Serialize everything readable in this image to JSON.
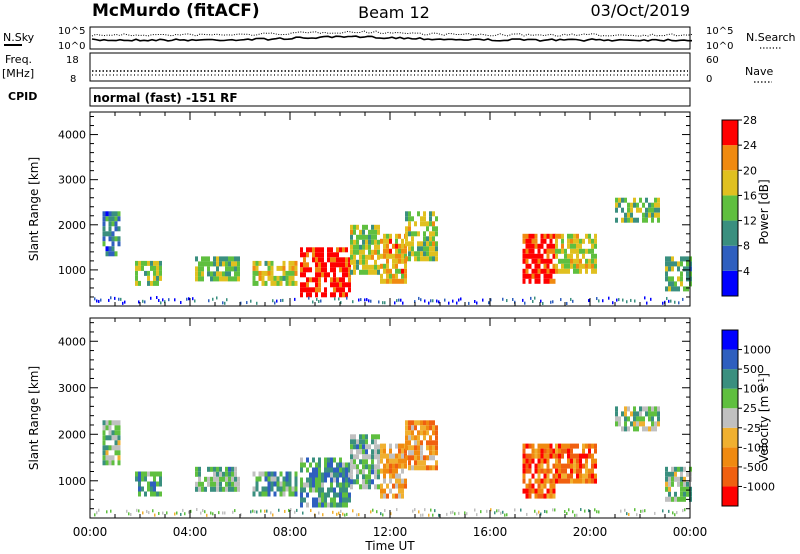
{
  "header": {
    "station": "McMurdo (fitACF)",
    "beam": "Beam 12",
    "date": "03/Oct/2019"
  },
  "top_panels": {
    "nsky_label": "N.Sky",
    "nsearch_label": "N.Search",
    "freq_label": "Freq.",
    "freq_unit": "[MHz]",
    "nave_label": "Nave",
    "cpid_label": "CPID",
    "cpid_value": "normal (fast) -151 RF",
    "noise_ticks": [
      "10^5",
      "10^0"
    ],
    "freq_ticks": [
      "18",
      "8"
    ],
    "nave_ticks": [
      "60",
      "0"
    ]
  },
  "chart_data": [
    {
      "type": "heatmap",
      "name": "power",
      "ylabel": "Slant Range [km]",
      "xlabel": "",
      "x_ticks": [
        "00:00",
        "04:00",
        "08:00",
        "12:00",
        "16:00",
        "20:00",
        "00:00"
      ],
      "y_ticks": [
        1000,
        2000,
        3000,
        4000
      ],
      "xlim": [
        0,
        24
      ],
      "ylim": [
        200,
        4500
      ],
      "colorbar": {
        "label": "Power [dB]",
        "ticks": [
          "4",
          "8",
          "12",
          "16",
          "20",
          "24",
          "28"
        ],
        "range": [
          0,
          30
        ]
      },
      "colors": [
        "#0000ff",
        "#2f5fbf",
        "#3a8f7f",
        "#5fbf3f",
        "#e0c020",
        "#f08a10",
        "#ff0000"
      ],
      "regions": [
        {
          "t0": 0.5,
          "t1": 1.2,
          "r0": 1400,
          "r1": 2300,
          "level": 0.3
        },
        {
          "t0": 1.8,
          "t1": 2.8,
          "r0": 700,
          "r1": 1200,
          "level": 0.5
        },
        {
          "t0": 4.2,
          "t1": 6.0,
          "r0": 800,
          "r1": 1300,
          "level": 0.5
        },
        {
          "t0": 6.5,
          "t1": 8.2,
          "r0": 700,
          "r1": 1200,
          "level": 0.6
        },
        {
          "t0": 8.4,
          "t1": 10.4,
          "r0": 500,
          "r1": 1500,
          "level": 0.95
        },
        {
          "t0": 10.4,
          "t1": 11.6,
          "r0": 900,
          "r1": 2000,
          "level": 0.55
        },
        {
          "t0": 11.6,
          "t1": 12.6,
          "r0": 700,
          "r1": 1800,
          "level": 0.7
        },
        {
          "t0": 12.6,
          "t1": 13.8,
          "r0": 1300,
          "r1": 2300,
          "level": 0.55
        },
        {
          "t0": 17.3,
          "t1": 18.6,
          "r0": 700,
          "r1": 1800,
          "level": 0.9
        },
        {
          "t0": 18.6,
          "t1": 20.2,
          "r0": 1000,
          "r1": 1800,
          "level": 0.6
        },
        {
          "t0": 21.0,
          "t1": 22.8,
          "r0": 2100,
          "r1": 2600,
          "level": 0.5
        },
        {
          "t0": 23.0,
          "t1": 24.0,
          "r0": 600,
          "r1": 1300,
          "level": 0.45
        }
      ]
    },
    {
      "type": "heatmap",
      "name": "velocity",
      "ylabel": "Slant Range [km]",
      "xlabel": "Time UT",
      "x_ticks": [
        "00:00",
        "04:00",
        "08:00",
        "12:00",
        "16:00",
        "20:00",
        "00:00"
      ],
      "y_ticks": [
        1000,
        2000,
        3000,
        4000
      ],
      "xlim": [
        0,
        24
      ],
      "ylim": [
        200,
        4500
      ],
      "colorbar": {
        "label": "Velocity [m s",
        "label_sup": "-1",
        "label_end": "]",
        "ticks": [
          "1000",
          "500",
          "100",
          "25",
          "-25",
          "-100",
          "-500",
          "-1000"
        ],
        "range": [
          -1500,
          1500
        ]
      },
      "colors": [
        "#ff0000",
        "#f06010",
        "#f08a10",
        "#f0b030",
        "#c0c0c0",
        "#5fbf3f",
        "#3a8f7f",
        "#2f5fbf",
        "#0000ff"
      ],
      "regions": [
        {
          "t0": 0.5,
          "t1": 1.2,
          "r0": 1400,
          "r1": 2300,
          "level": 0.6
        },
        {
          "t0": 1.8,
          "t1": 2.8,
          "r0": 700,
          "r1": 1200,
          "level": 0.68
        },
        {
          "t0": 4.2,
          "t1": 6.0,
          "r0": 800,
          "r1": 1300,
          "level": 0.62
        },
        {
          "t0": 6.5,
          "t1": 8.2,
          "r0": 700,
          "r1": 1200,
          "level": 0.68
        },
        {
          "t0": 8.4,
          "t1": 10.4,
          "r0": 500,
          "r1": 1500,
          "level": 0.7
        },
        {
          "t0": 10.4,
          "t1": 11.6,
          "r0": 900,
          "r1": 2000,
          "level": 0.62
        },
        {
          "t0": 11.6,
          "t1": 12.6,
          "r0": 700,
          "r1": 1800,
          "level": 0.35
        },
        {
          "t0": 12.6,
          "t1": 13.8,
          "r0": 1300,
          "r1": 2300,
          "level": 0.3
        },
        {
          "t0": 17.3,
          "t1": 18.6,
          "r0": 700,
          "r1": 1800,
          "level": 0.2
        },
        {
          "t0": 18.6,
          "t1": 20.2,
          "r0": 1000,
          "r1": 1800,
          "level": 0.22
        },
        {
          "t0": 21.0,
          "t1": 22.8,
          "r0": 2100,
          "r1": 2600,
          "level": 0.55
        },
        {
          "t0": 23.0,
          "t1": 24.0,
          "r0": 600,
          "r1": 1300,
          "level": 0.6
        }
      ]
    }
  ]
}
